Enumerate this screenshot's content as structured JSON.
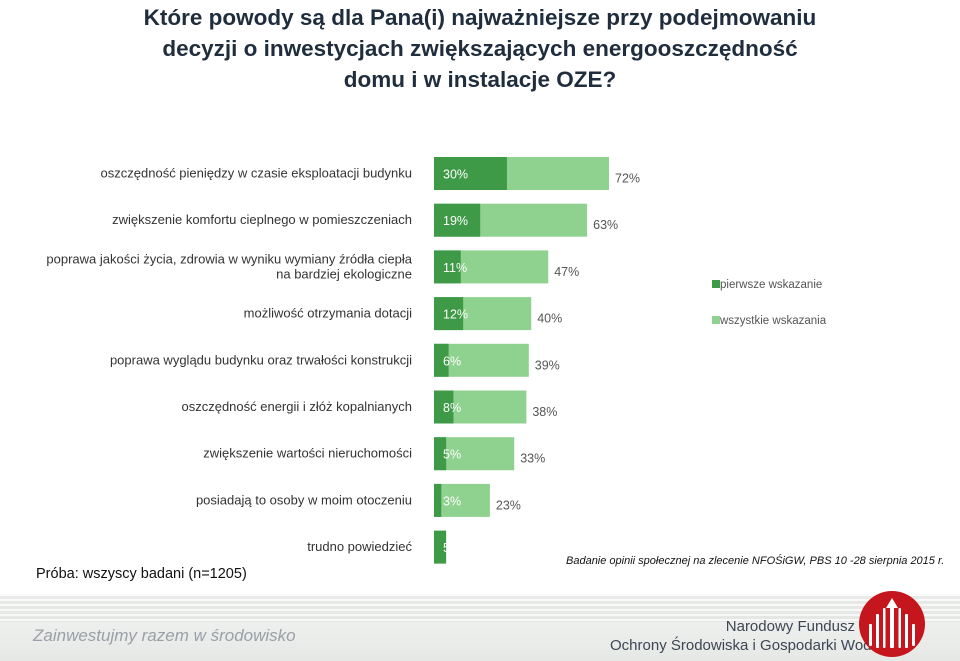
{
  "title_lines": [
    "Które powody są dla Pana(i) najważniejsze przy podejmowaniu",
    "decyzji o inwestycjach zwiększających energooszczędność",
    "domu i w instalacje OZE?"
  ],
  "chart_data": {
    "type": "bar",
    "orientation": "horizontal",
    "title": "Które powody są dla Pana(i) najważniejsze przy podejmowaniu decyzji o inwestycjach zwiększających energooszczędność domu i w instalacje OZE?",
    "unit": "%",
    "categories": [
      {
        "lines": [
          "oszczędność pieniędzy w czasie eksploatacji budynku"
        ]
      },
      {
        "lines": [
          "zwiększenie komfortu cieplnego w pomieszczeniach"
        ]
      },
      {
        "lines": [
          "poprawa jakości życia, zdrowia w wyniku wymiany źródła ciepła",
          "na bardziej ekologiczne"
        ]
      },
      {
        "lines": [
          "możliwość otrzymania dotacji"
        ]
      },
      {
        "lines": [
          "poprawa wyglądu budynku oraz trwałości konstrukcji"
        ]
      },
      {
        "lines": [
          "oszczędność energii i złóż kopalnianych"
        ]
      },
      {
        "lines": [
          "zwiększenie wartości nieruchomości"
        ]
      },
      {
        "lines": [
          "posiadają to osoby w moim otoczeniu"
        ]
      },
      {
        "lines": [
          "trudno powiedzieć"
        ]
      }
    ],
    "series": [
      {
        "name": "pierwsze wskazanie",
        "color": "#3e9a47",
        "values": [
          30,
          19,
          11,
          12,
          6,
          8,
          5,
          3,
          5
        ],
        "labels": [
          "30%",
          "19%",
          "11%",
          "12%",
          "6%",
          "8%",
          "5%",
          "3%",
          "5%"
        ]
      },
      {
        "name": "wszystkie wskazania",
        "color": "#8fd18f",
        "values": [
          72,
          63,
          47,
          40,
          39,
          38,
          33,
          23,
          null
        ],
        "labels": [
          "72%",
          "63%",
          "47%",
          "40%",
          "39%",
          "38%",
          "33%",
          "23%",
          ""
        ]
      }
    ],
    "xlim": [
      0,
      100
    ],
    "grid": false,
    "legend": "right"
  },
  "notes": {
    "sample": "Próba: wszyscy badani (n=1205)",
    "survey": "Badanie opinii społecznej na zlecenie NFOŚiGW, PBS 10 -28 sierpnia 2015 r."
  },
  "footer": {
    "slogan": "Zainwestujmy razem w środowisko",
    "org_line1": "Narodowy Fundusz",
    "org_line2": "Ochrony Środowiska i Gospodarki Wodnej",
    "logo_icon": "nfosigw-logo-icon",
    "logo_color": "#c4161c"
  }
}
